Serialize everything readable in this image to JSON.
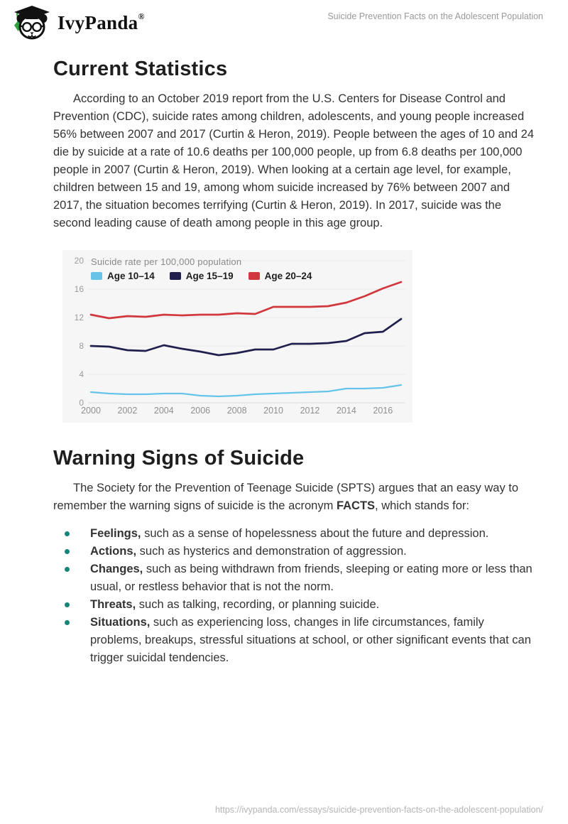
{
  "header": {
    "brand": "IvyPanda",
    "registered_mark": "®",
    "doc_title": "Suicide Prevention Facts on the Adolescent Population"
  },
  "section1": {
    "heading": "Current Statistics",
    "paragraph": "According to an October 2019 report from the U.S. Centers for Disease Control and Prevention (CDC), suicide rates among children, adolescents, and young people increased 56% between 2007 and 2017 (Curtin & Heron, 2019). People between the ages of 10 and 24 die by suicide at a rate of 10.6 deaths per 100,000 people, up from 6.8 deaths per 100,000 people in 2007 (Curtin & Heron, 2019). When looking at a certain age level, for example, children between 15 and 19, among whom suicide increased by 76% between 2007 and 2017, the situation becomes terrifying (Curtin & Heron, 2019). In 2017, suicide was the second leading cause of death among people in this age group."
  },
  "chart_data": {
    "type": "line",
    "title": "Suicide rate per 100,000 population",
    "x": [
      2000,
      2001,
      2002,
      2003,
      2004,
      2005,
      2006,
      2007,
      2008,
      2009,
      2010,
      2011,
      2012,
      2013,
      2014,
      2015,
      2016,
      2017
    ],
    "series": [
      {
        "name": "Age 10–14",
        "color": "#66c4e8",
        "stroke_width": 2.2,
        "values": [
          1.5,
          1.3,
          1.2,
          1.2,
          1.3,
          1.3,
          1.0,
          0.9,
          1.0,
          1.2,
          1.3,
          1.4,
          1.5,
          1.6,
          2.0,
          2.0,
          2.1,
          2.5
        ]
      },
      {
        "name": "Age 15–19",
        "color": "#20204e",
        "stroke_width": 2.7,
        "values": [
          8.0,
          7.9,
          7.4,
          7.3,
          8.1,
          7.6,
          7.2,
          6.7,
          7.0,
          7.5,
          7.5,
          8.3,
          8.3,
          8.4,
          8.7,
          9.8,
          10.0,
          11.8
        ]
      },
      {
        "name": "Age 20–24",
        "color": "#d1383d",
        "stroke_width": 2.7,
        "values": [
          12.4,
          11.9,
          12.2,
          12.1,
          12.4,
          12.3,
          12.4,
          12.4,
          12.6,
          12.5,
          13.5,
          13.5,
          13.5,
          13.6,
          14.1,
          15.0,
          16.1,
          17.0
        ]
      }
    ],
    "xlabel": "",
    "ylabel": "",
    "ylim": [
      0,
      20
    ],
    "yticks": [
      0,
      4,
      8,
      12,
      16,
      20
    ],
    "xticks": [
      2000,
      2002,
      2004,
      2006,
      2008,
      2010,
      2012,
      2014,
      2016
    ],
    "grid": true,
    "legend_position": "top-left",
    "background": "#f6f6f7",
    "grid_color": "#e8e8ea",
    "tick_label_color": "#9b9b9b"
  },
  "section2": {
    "heading": "Warning Signs of Suicide",
    "para_before": "The Society for the Prevention of Teenage Suicide (SPTS) argues that an easy way to remember the warning signs of suicide is the acronym ",
    "para_bold": "FACTS",
    "para_after": ", which stands for:",
    "bullet_color": "#15857b",
    "bullets": [
      {
        "term": "Feelings,",
        "text": " such as a sense of hopelessness about the future and depression."
      },
      {
        "term": "Actions,",
        "text": " such as hysterics and demonstration of aggression."
      },
      {
        "term": "Changes,",
        "text": " such as being withdrawn from friends, sleeping or eating more or less than usual, or restless behavior that is not the norm."
      },
      {
        "term": "Threats,",
        "text": " such as talking, recording, or planning suicide."
      },
      {
        "term": "Situations,",
        "text": " such as experiencing loss, changes in life circumstances, family problems, breakups, stressful situations at school, or other significant events that can trigger suicidal tendencies."
      }
    ]
  },
  "footer": {
    "url": "https://ivypanda.com/essays/suicide-prevention-facts-on-the-adolescent-population/"
  }
}
